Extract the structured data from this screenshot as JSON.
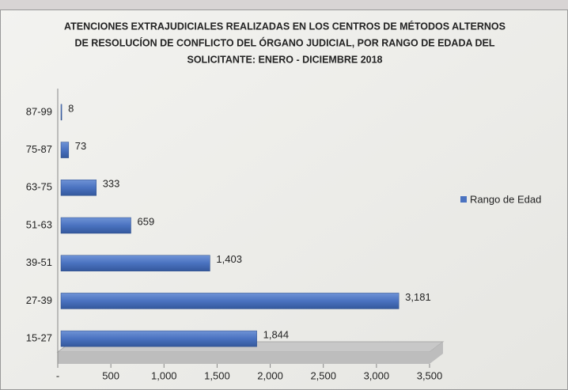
{
  "chart_data": {
    "type": "bar",
    "orientation": "horizontal",
    "title": [
      "ATENCIONES EXTRAJUDICIALES REALIZADAS EN LOS CENTROS DE MÉTODOS ALTERNOS",
      "DE RESOLUCÍON DE CONFLICTO DEL ÓRGANO JUDICIAL, POR RANGO DE EDADA DEL",
      "SOLICITANTE: ENERO - DICIEMBRE 2018"
    ],
    "categories": [
      "15-27",
      "27-39",
      "39-51",
      "51-63",
      "63-75",
      "75-87",
      "87-99"
    ],
    "series": [
      {
        "name": "Rango de Edad",
        "color": "#4a72c0",
        "values": [
          1844,
          3181,
          1403,
          659,
          333,
          73,
          8
        ],
        "value_labels": [
          "1,844",
          "3,181",
          "1,403",
          "659",
          "333",
          "73",
          "8"
        ]
      }
    ],
    "xlim": [
      0,
      3500
    ],
    "xticks": [
      {
        "value": 0,
        "label": "-"
      },
      500,
      {
        "value": 1000,
        "label": "1,000"
      },
      {
        "value": 1500,
        "label": "1,500"
      },
      {
        "value": 2000,
        "label": "2,000"
      },
      {
        "value": 2500,
        "label": "2,500"
      },
      {
        "value": 3000,
        "label": "3,000"
      },
      {
        "value": 3500,
        "label": "3,500"
      }
    ],
    "legend": "right"
  }
}
